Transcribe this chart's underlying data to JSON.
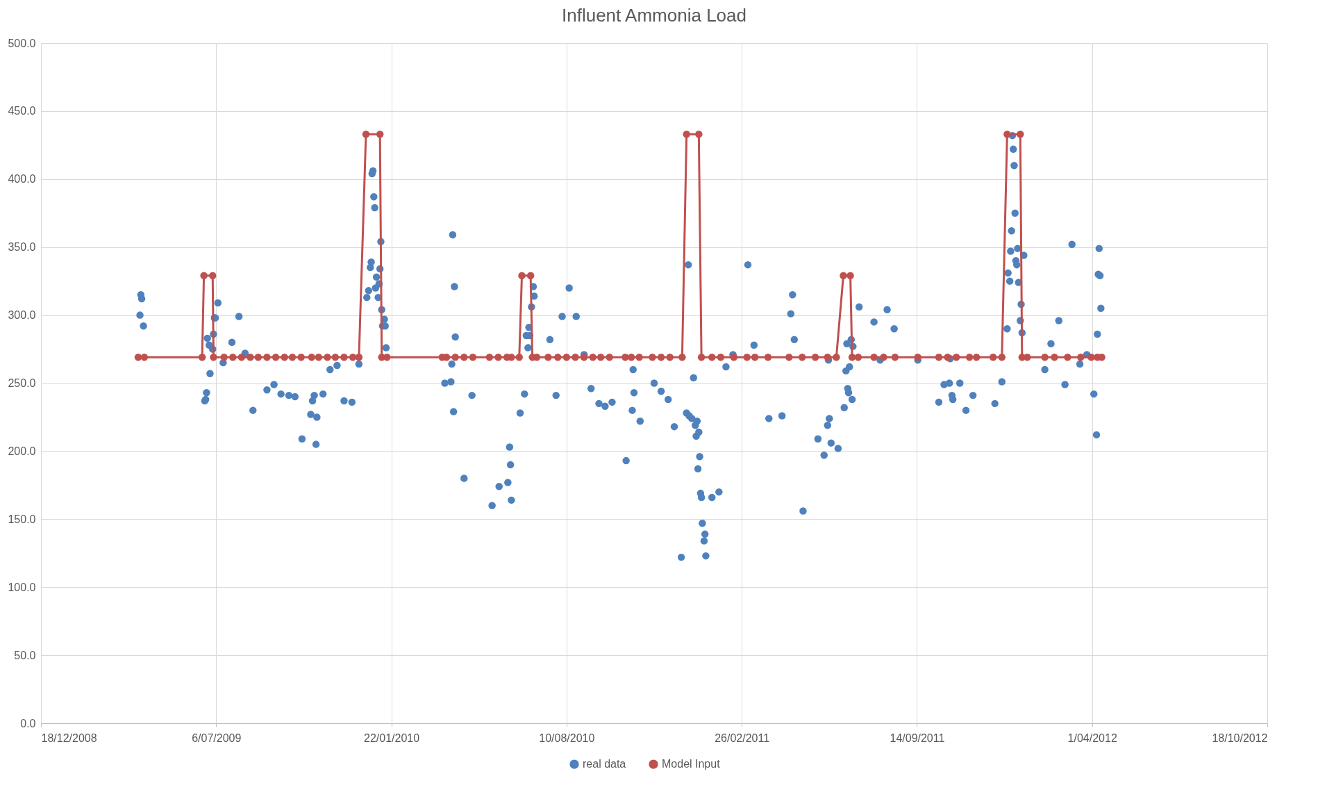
{
  "chart_data": {
    "type": "scatter",
    "title": "Influent Ammonia Load",
    "legend": "bottom",
    "grid": true,
    "marker": "circle",
    "xlim": [
      "2008-12-18",
      "2012-10-18"
    ],
    "xticks": [
      {
        "value": "2008-12-18",
        "label": "18/12/2008"
      },
      {
        "value": "2009-07-06",
        "label": "6/07/2009"
      },
      {
        "value": "2010-01-22",
        "label": "22/01/2010"
      },
      {
        "value": "2010-08-10",
        "label": "10/08/2010"
      },
      {
        "value": "2011-02-26",
        "label": "26/02/2011"
      },
      {
        "value": "2011-09-14",
        "label": "14/09/2011"
      },
      {
        "value": "2012-04-01",
        "label": "1/04/2012"
      },
      {
        "value": "2012-10-18",
        "label": "18/10/2012"
      }
    ],
    "ylim": [
      0,
      500
    ],
    "yticks": [
      {
        "value": 0,
        "label": "0.0"
      },
      {
        "value": 50,
        "label": "50.0"
      },
      {
        "value": 100,
        "label": "100.0"
      },
      {
        "value": 150,
        "label": "150.0"
      },
      {
        "value": 200,
        "label": "200.0"
      },
      {
        "value": 250,
        "label": "250.0"
      },
      {
        "value": 300,
        "label": "300.0"
      },
      {
        "value": 350,
        "label": "350.0"
      },
      {
        "value": 400,
        "label": "400.0"
      },
      {
        "value": 450,
        "label": "450.0"
      },
      {
        "value": 500,
        "label": "500.0"
      }
    ],
    "series": [
      {
        "name": "real data",
        "color": "#4f81bd",
        "x": [
          "2009-04-10",
          "2009-04-11",
          "2009-04-12",
          "2009-04-14",
          "2009-06-23",
          "2009-06-24",
          "2009-06-25",
          "2009-06-26",
          "2009-06-28",
          "2009-06-29",
          "2009-07-02",
          "2009-07-03",
          "2009-07-04",
          "2009-07-05",
          "2009-07-08",
          "2009-07-14",
          "2009-07-24",
          "2009-08-01",
          "2009-08-08",
          "2009-08-17",
          "2009-09-02",
          "2009-09-10",
          "2009-09-18",
          "2009-09-27",
          "2009-10-04",
          "2009-10-12",
          "2009-10-22",
          "2009-10-24",
          "2009-10-26",
          "2009-10-28",
          "2009-10-29",
          "2009-11-05",
          "2009-11-13",
          "2009-11-21",
          "2009-11-29",
          "2009-12-08",
          "2009-12-16",
          "2009-12-25",
          "2009-12-27",
          "2009-12-29",
          "2009-12-30",
          "2009-12-31",
          "2010-01-01",
          "2010-01-02",
          "2010-01-03",
          "2010-01-04",
          "2010-01-05",
          "2010-01-07",
          "2010-01-08",
          "2010-01-09",
          "2010-01-10",
          "2010-01-11",
          "2010-01-12",
          "2010-01-14",
          "2010-01-15",
          "2010-01-16",
          "2010-03-24",
          "2010-03-31",
          "2010-04-01",
          "2010-04-02",
          "2010-04-03",
          "2010-04-04",
          "2010-04-05",
          "2010-04-15",
          "2010-04-24",
          "2010-05-17",
          "2010-05-25",
          "2010-06-04",
          "2010-06-06",
          "2010-06-07",
          "2010-06-08",
          "2010-06-18",
          "2010-06-23",
          "2010-06-25",
          "2010-06-27",
          "2010-06-28",
          "2010-06-29",
          "2010-07-01",
          "2010-07-03",
          "2010-07-04",
          "2010-07-22",
          "2010-07-29",
          "2010-08-05",
          "2010-08-13",
          "2010-08-21",
          "2010-08-30",
          "2010-09-07",
          "2010-09-16",
          "2010-09-23",
          "2010-10-01",
          "2010-10-17",
          "2010-10-24",
          "2010-10-25",
          "2010-10-26",
          "2010-11-02",
          "2010-11-18",
          "2010-11-26",
          "2010-12-04",
          "2010-12-11",
          "2010-12-19",
          "2010-12-25",
          "2010-12-27",
          "2010-12-28",
          "2010-12-31",
          "2011-01-02",
          "2011-01-04",
          "2011-01-05",
          "2011-01-06",
          "2011-01-07",
          "2011-01-08",
          "2011-01-09",
          "2011-01-10",
          "2011-01-11",
          "2011-01-12",
          "2011-01-14",
          "2011-01-15",
          "2011-01-16",
          "2011-01-23",
          "2011-01-31",
          "2011-02-08",
          "2011-02-16",
          "2011-03-05",
          "2011-03-12",
          "2011-03-29",
          "2011-04-13",
          "2011-04-23",
          "2011-04-25",
          "2011-04-27",
          "2011-05-07",
          "2011-05-24",
          "2011-05-31",
          "2011-06-04",
          "2011-06-05",
          "2011-06-06",
          "2011-06-08",
          "2011-06-16",
          "2011-06-23",
          "2011-06-25",
          "2011-06-26",
          "2011-06-27",
          "2011-06-28",
          "2011-06-29",
          "2011-07-01",
          "2011-07-02",
          "2011-07-03",
          "2011-07-10",
          "2011-07-27",
          "2011-08-03",
          "2011-08-11",
          "2011-08-19",
          "2011-09-15",
          "2011-10-09",
          "2011-10-15",
          "2011-10-21",
          "2011-10-22",
          "2011-10-24",
          "2011-10-25",
          "2011-11-02",
          "2011-11-09",
          "2011-11-17",
          "2011-12-12",
          "2011-12-20",
          "2011-12-26",
          "2011-12-27",
          "2011-12-29",
          "2011-12-30",
          "2011-12-31",
          "2012-01-01",
          "2012-01-02",
          "2012-01-03",
          "2012-01-04",
          "2012-01-05",
          "2012-01-06",
          "2012-01-07",
          "2012-01-08",
          "2012-01-10",
          "2012-01-11",
          "2012-01-12",
          "2012-01-14",
          "2012-02-07",
          "2012-02-14",
          "2012-02-23",
          "2012-03-01",
          "2012-03-09",
          "2012-03-18",
          "2012-03-26",
          "2012-04-03",
          "2012-04-06",
          "2012-04-07",
          "2012-04-08",
          "2012-04-09",
          "2012-04-10",
          "2012-04-11"
        ],
        "values": [
          300,
          315,
          312,
          292,
          237,
          238,
          243,
          283,
          278,
          257,
          275,
          286,
          298,
          298,
          309,
          265,
          280,
          299,
          272,
          230,
          245,
          249,
          242,
          241,
          240,
          209,
          227,
          237,
          241,
          205,
          225,
          242,
          260,
          263,
          237,
          236,
          264,
          313,
          318,
          335,
          339,
          404,
          406,
          387,
          379,
          320,
          328,
          313,
          323,
          334,
          354,
          304,
          292,
          297,
          292,
          276,
          250,
          251,
          264,
          359,
          229,
          321,
          284,
          180,
          241,
          160,
          174,
          177,
          203,
          190,
          164,
          228,
          242,
          285,
          276,
          291,
          285,
          306,
          321,
          314,
          282,
          241,
          299,
          320,
          299,
          271,
          246,
          235,
          233,
          236,
          193,
          230,
          260,
          243,
          222,
          250,
          244,
          238,
          218,
          122,
          228,
          337,
          226,
          224,
          254,
          219,
          211,
          222,
          187,
          214,
          196,
          169,
          166,
          147,
          134,
          139,
          123,
          166,
          170,
          262,
          271,
          337,
          278,
          224,
          226,
          301,
          315,
          282,
          156,
          209,
          197,
          219,
          267,
          224,
          206,
          202,
          232,
          259,
          279,
          246,
          243,
          262,
          282,
          238,
          277,
          306,
          295,
          267,
          304,
          290,
          267,
          236,
          249,
          250,
          268,
          241,
          238,
          250,
          230,
          241,
          235,
          251,
          290,
          331,
          325,
          347,
          362,
          432,
          422,
          410,
          375,
          340,
          337,
          349,
          324,
          296,
          308,
          287,
          344,
          260,
          279,
          296,
          249,
          352,
          264,
          271,
          242,
          212,
          286,
          330,
          349,
          329,
          305
        ]
      },
      {
        "name": "Model Input",
        "type": "line",
        "color": "#c0504d",
        "line_style": "solid",
        "x": [
          "2009-04-08",
          "2009-04-15",
          "2009-06-20",
          "2009-06-22",
          "2009-07-02",
          "2009-07-03",
          "2009-07-15",
          "2009-07-25",
          "2009-08-04",
          "2009-08-14",
          "2009-08-23",
          "2009-09-02",
          "2009-09-12",
          "2009-09-22",
          "2009-10-01",
          "2009-10-11",
          "2009-10-23",
          "2009-10-31",
          "2009-11-10",
          "2009-11-19",
          "2009-11-29",
          "2009-12-09",
          "2009-12-16",
          "2009-12-24",
          "2010-01-09",
          "2010-01-11",
          "2010-01-17",
          "2010-03-21",
          "2010-03-26",
          "2010-04-05",
          "2010-04-15",
          "2010-04-25",
          "2010-05-14",
          "2010-05-24",
          "2010-06-03",
          "2010-06-08",
          "2010-06-17",
          "2010-06-20",
          "2010-06-30",
          "2010-07-02",
          "2010-07-07",
          "2010-07-20",
          "2010-07-31",
          "2010-08-10",
          "2010-08-20",
          "2010-08-30",
          "2010-09-09",
          "2010-09-18",
          "2010-09-28",
          "2010-10-16",
          "2010-10-23",
          "2010-11-01",
          "2010-11-16",
          "2010-11-26",
          "2010-12-06",
          "2010-12-20",
          "2010-12-25",
          "2011-01-08",
          "2011-01-11",
          "2011-01-23",
          "2011-02-02",
          "2011-02-17",
          "2011-03-04",
          "2011-03-13",
          "2011-03-28",
          "2011-04-21",
          "2011-05-06",
          "2011-05-21",
          "2011-06-04",
          "2011-06-14",
          "2011-06-22",
          "2011-06-30",
          "2011-07-02",
          "2011-07-09",
          "2011-07-27",
          "2011-08-07",
          "2011-08-20",
          "2011-09-15",
          "2011-10-09",
          "2011-10-19",
          "2011-10-29",
          "2011-11-13",
          "2011-11-21",
          "2011-12-10",
          "2011-12-20",
          "2011-12-26",
          "2012-01-10",
          "2012-01-12",
          "2012-01-18",
          "2012-02-07",
          "2012-02-18",
          "2012-03-04",
          "2012-03-19",
          "2012-03-31",
          "2012-04-07",
          "2012-04-12"
        ],
        "values": [
          269,
          269,
          269,
          329,
          329,
          269,
          269,
          269,
          269,
          269,
          269,
          269,
          269,
          269,
          269,
          269,
          269,
          269,
          269,
          269,
          269,
          269,
          269,
          433,
          433,
          269,
          269,
          269,
          269,
          269,
          269,
          269,
          269,
          269,
          269,
          269,
          269,
          329,
          329,
          269,
          269,
          269,
          269,
          269,
          269,
          269,
          269,
          269,
          269,
          269,
          269,
          269,
          269,
          269,
          269,
          269,
          433,
          433,
          269,
          269,
          269,
          269,
          269,
          269,
          269,
          269,
          269,
          269,
          269,
          269,
          329,
          329,
          269,
          269,
          269,
          269,
          269,
          269,
          269,
          269,
          269,
          269,
          269,
          269,
          269,
          433,
          433,
          269,
          269,
          269,
          269,
          269,
          269,
          269,
          269,
          269
        ]
      }
    ]
  }
}
